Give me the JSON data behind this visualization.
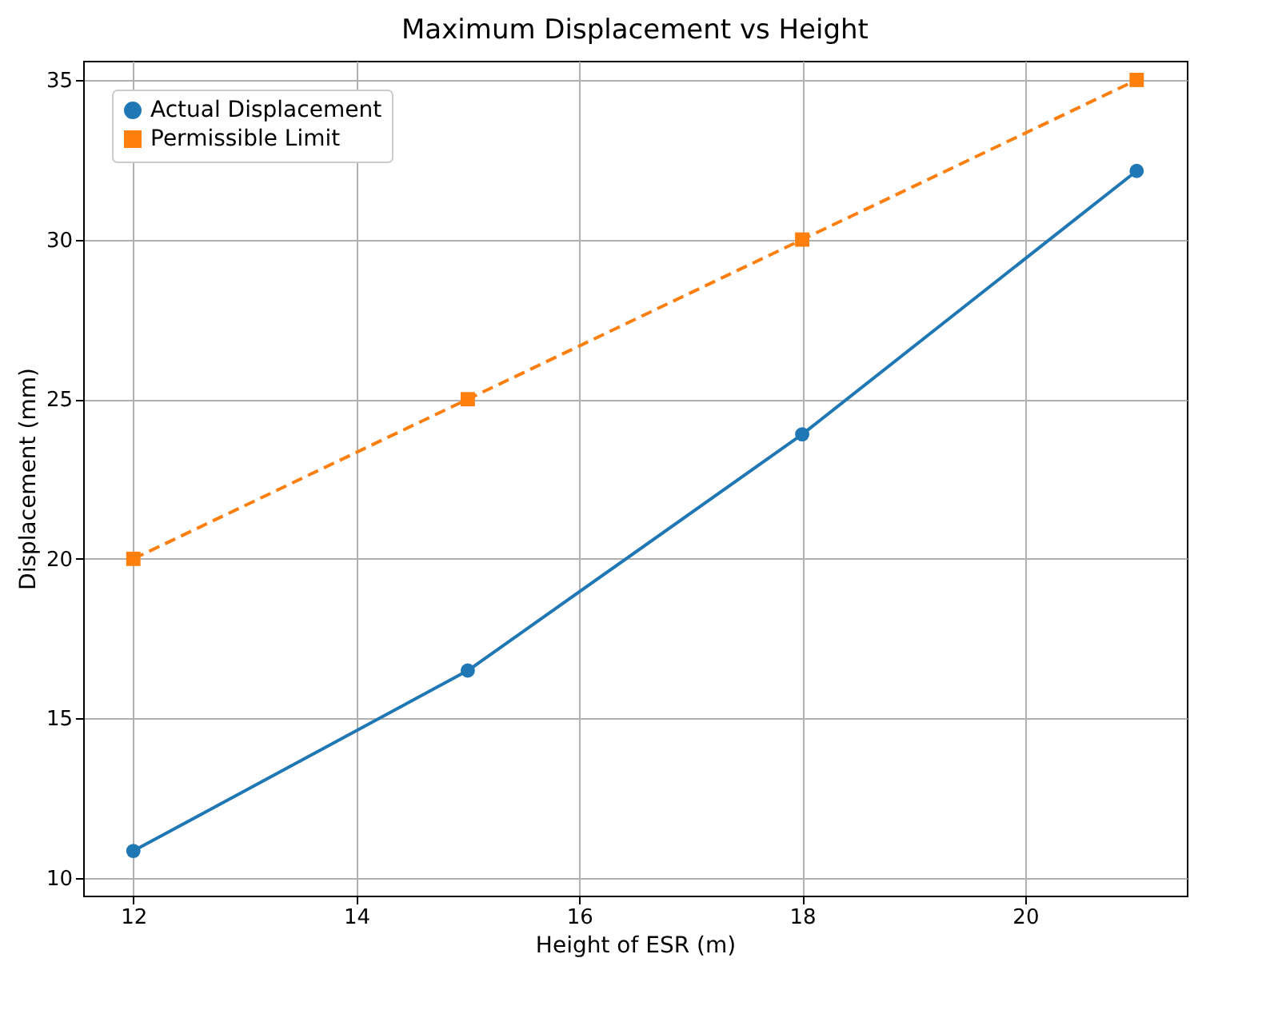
{
  "chart_data": {
    "type": "line",
    "title": "Maximum Displacement vs Height",
    "xlabel": "Height of ESR (m)",
    "ylabel": "Displacement (mm)",
    "x": [
      12,
      15,
      18,
      21
    ],
    "series": [
      {
        "name": "Actual Displacement",
        "color": "#1f77b4",
        "values": [
          10.85,
          16.5,
          23.9,
          32.15
        ],
        "marker": "circle",
        "line_style": "solid"
      },
      {
        "name": "Permissible Limit",
        "color": "#ff7f0e",
        "values": [
          20,
          25,
          30,
          35
        ],
        "marker": "square",
        "line_style": "dashed"
      }
    ],
    "xlim": [
      11.55,
      21.45
    ],
    "ylim": [
      9.45,
      35.6
    ],
    "xticks": [
      12,
      14,
      16,
      18,
      20
    ],
    "yticks": [
      10,
      15,
      20,
      25,
      30,
      35
    ],
    "grid": true,
    "legend": "top left"
  }
}
